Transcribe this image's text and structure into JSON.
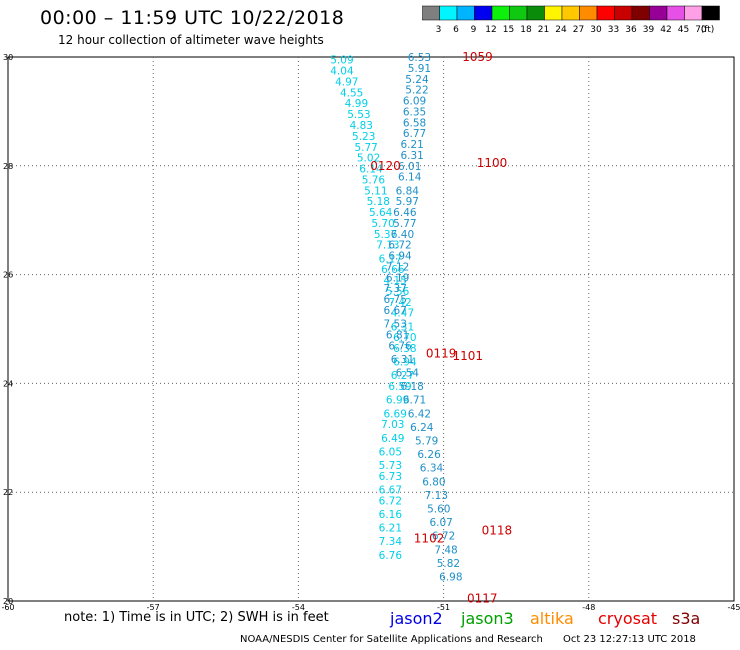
{
  "header": {
    "title": "00:00 – 11:59 UTC 10/22/2018",
    "subtitle": "12 hour collection of altimeter wave heights"
  },
  "color_scale": {
    "unit": "(ft)",
    "bins": [
      {
        "label": "3",
        "color": "#7f7f7f"
      },
      {
        "label": "6",
        "color": "#00f5ff"
      },
      {
        "label": "9",
        "color": "#00b4ff"
      },
      {
        "label": "12",
        "color": "#0000f0"
      },
      {
        "label": "15",
        "color": "#0cf00c"
      },
      {
        "label": "18",
        "color": "#10c810"
      },
      {
        "label": "21",
        "color": "#0a8c0a"
      },
      {
        "label": "24",
        "color": "#fff500"
      },
      {
        "label": "27",
        "color": "#ffc800"
      },
      {
        "label": "30",
        "color": "#ff8c00"
      },
      {
        "label": "33",
        "color": "#ff0000"
      },
      {
        "label": "36",
        "color": "#c80000"
      },
      {
        "label": "39",
        "color": "#800000"
      },
      {
        "label": "42",
        "color": "#960096"
      },
      {
        "label": "45",
        "color": "#e650e6"
      },
      {
        "label": "70",
        "color": "#ffa0e6"
      },
      {
        "label": "",
        "color": "#000000"
      }
    ]
  },
  "chart_data": {
    "type": "scatter",
    "xlim": [
      -60,
      -45
    ],
    "ylim": [
      20,
      30
    ],
    "x_ticks": [
      "-60",
      "-57",
      "-54",
      "-51",
      "-48",
      "-45"
    ],
    "y_ticks": [
      "20",
      "22",
      "24",
      "26",
      "28",
      "30"
    ],
    "grid": true,
    "series": [
      {
        "name": "pass_left",
        "color": "#00cfe8",
        "points": [
          {
            "x": -53.1,
            "y": 29.95,
            "label": "5.09"
          },
          {
            "x": -53.1,
            "y": 29.75,
            "label": "4.04"
          },
          {
            "x": -53.0,
            "y": 29.55,
            "label": "4.97"
          },
          {
            "x": -52.9,
            "y": 29.35,
            "label": "4.55"
          },
          {
            "x": -52.8,
            "y": 29.15,
            "label": "4.99"
          },
          {
            "x": -52.75,
            "y": 28.95,
            "label": "5.53"
          },
          {
            "x": -52.7,
            "y": 28.75,
            "label": "4.83"
          },
          {
            "x": -52.65,
            "y": 28.55,
            "label": "5.23"
          },
          {
            "x": -52.6,
            "y": 28.35,
            "label": "5.77"
          },
          {
            "x": -52.55,
            "y": 28.15,
            "label": "5.02"
          },
          {
            "x": -52.5,
            "y": 27.95,
            "label": "6.14"
          },
          {
            "x": -52.45,
            "y": 27.75,
            "label": "5.76"
          },
          {
            "x": -52.4,
            "y": 27.55,
            "label": "5.11"
          },
          {
            "x": -52.35,
            "y": 27.35,
            "label": "5.18"
          },
          {
            "x": -52.3,
            "y": 27.15,
            "label": "5.64"
          },
          {
            "x": -52.25,
            "y": 26.95,
            "label": "5.70"
          },
          {
            "x": -52.2,
            "y": 26.75,
            "label": "5.37"
          },
          {
            "x": -52.15,
            "y": 26.55,
            "label": "7.13"
          },
          {
            "x": -52.1,
            "y": 26.3,
            "label": "6.17"
          },
          {
            "x": -52.05,
            "y": 26.1,
            "label": "6.66"
          },
          {
            "x": -52.0,
            "y": 25.9,
            "label": "4.15"
          },
          {
            "x": -51.95,
            "y": 25.7,
            "label": "5.56"
          },
          {
            "x": -51.9,
            "y": 25.5,
            "label": "7.42"
          },
          {
            "x": -51.85,
            "y": 25.3,
            "label": "4.47"
          },
          {
            "x": -51.85,
            "y": 25.05,
            "label": "6.31"
          },
          {
            "x": -51.8,
            "y": 24.85,
            "label": "6.70"
          },
          {
            "x": -51.8,
            "y": 24.65,
            "label": "6.38"
          },
          {
            "x": -51.8,
            "y": 24.4,
            "label": "6.94"
          },
          {
            "x": -51.85,
            "y": 24.15,
            "label": "6.27"
          },
          {
            "x": -51.9,
            "y": 23.95,
            "label": "6.59"
          },
          {
            "x": -51.95,
            "y": 23.7,
            "label": "6.99"
          },
          {
            "x": -52.0,
            "y": 23.45,
            "label": "6.69"
          },
          {
            "x": -52.05,
            "y": 23.25,
            "label": "7.03"
          },
          {
            "x": -52.05,
            "y": 23.0,
            "label": "6.49"
          },
          {
            "x": -52.1,
            "y": 22.75,
            "label": "6.05"
          },
          {
            "x": -52.1,
            "y": 22.5,
            "label": "5.73"
          },
          {
            "x": -52.1,
            "y": 22.3,
            "label": "6.73"
          },
          {
            "x": -52.1,
            "y": 22.05,
            "label": "6.67"
          },
          {
            "x": -52.1,
            "y": 21.85,
            "label": "6.72"
          },
          {
            "x": -52.1,
            "y": 21.6,
            "label": "6.16"
          },
          {
            "x": -52.1,
            "y": 21.35,
            "label": "6.21"
          },
          {
            "x": -52.1,
            "y": 21.1,
            "label": "7.34"
          },
          {
            "x": -52.1,
            "y": 20.85,
            "label": "6.76"
          }
        ]
      },
      {
        "name": "pass_right",
        "color": "#1e90c8",
        "points": [
          {
            "x": -51.5,
            "y": 30.0,
            "label": "6.53"
          },
          {
            "x": -51.5,
            "y": 29.8,
            "label": "5.91"
          },
          {
            "x": -51.55,
            "y": 29.6,
            "label": "5.24"
          },
          {
            "x": -51.55,
            "y": 29.4,
            "label": "5.22"
          },
          {
            "x": -51.6,
            "y": 29.2,
            "label": "6.09"
          },
          {
            "x": -51.6,
            "y": 29.0,
            "label": "6.35"
          },
          {
            "x": -51.6,
            "y": 28.8,
            "label": "6.58"
          },
          {
            "x": -51.6,
            "y": 28.6,
            "label": "6.77"
          },
          {
            "x": -51.65,
            "y": 28.4,
            "label": "6.21"
          },
          {
            "x": -51.65,
            "y": 28.2,
            "label": "6.31"
          },
          {
            "x": -51.7,
            "y": 28.0,
            "label": "6.01"
          },
          {
            "x": -51.7,
            "y": 27.8,
            "label": "6.14"
          },
          {
            "x": -51.75,
            "y": 27.55,
            "label": "6.84"
          },
          {
            "x": -51.75,
            "y": 27.35,
            "label": "5.97"
          },
          {
            "x": -51.8,
            "y": 27.15,
            "label": "6.46"
          },
          {
            "x": -51.8,
            "y": 26.95,
            "label": "5.77"
          },
          {
            "x": -51.85,
            "y": 26.75,
            "label": "6.40"
          },
          {
            "x": -51.9,
            "y": 26.55,
            "label": "6.72"
          },
          {
            "x": -51.9,
            "y": 26.35,
            "label": "6.94"
          },
          {
            "x": -51.95,
            "y": 26.15,
            "label": "7.12"
          },
          {
            "x": -51.95,
            "y": 25.95,
            "label": "6.19"
          },
          {
            "x": -52.0,
            "y": 25.75,
            "label": "7.37"
          },
          {
            "x": -52.0,
            "y": 25.55,
            "label": "6.75"
          },
          {
            "x": -52.0,
            "y": 25.35,
            "label": "6.67"
          },
          {
            "x": -52.0,
            "y": 25.1,
            "label": "7.53"
          },
          {
            "x": -51.95,
            "y": 24.9,
            "label": "6.81"
          },
          {
            "x": -51.9,
            "y": 24.7,
            "label": "6.76"
          },
          {
            "x": -51.85,
            "y": 24.45,
            "label": "6.31"
          },
          {
            "x": -51.75,
            "y": 24.2,
            "label": "6.54"
          },
          {
            "x": -51.65,
            "y": 23.95,
            "label": "6.18"
          },
          {
            "x": -51.6,
            "y": 23.7,
            "label": "6.71"
          },
          {
            "x": -51.5,
            "y": 23.45,
            "label": "6.42"
          },
          {
            "x": -51.45,
            "y": 23.2,
            "label": "6.24"
          },
          {
            "x": -51.35,
            "y": 22.95,
            "label": "5.79"
          },
          {
            "x": -51.3,
            "y": 22.7,
            "label": "6.26"
          },
          {
            "x": -51.25,
            "y": 22.45,
            "label": "6.34"
          },
          {
            "x": -51.2,
            "y": 22.2,
            "label": "6.80"
          },
          {
            "x": -51.15,
            "y": 21.95,
            "label": "7.13"
          },
          {
            "x": -51.1,
            "y": 21.7,
            "label": "5.60"
          },
          {
            "x": -51.05,
            "y": 21.45,
            "label": "6.07"
          },
          {
            "x": -51.0,
            "y": 21.2,
            "label": "6.72"
          },
          {
            "x": -50.95,
            "y": 20.95,
            "label": "7.48"
          },
          {
            "x": -50.9,
            "y": 20.7,
            "label": "5.82"
          },
          {
            "x": -50.85,
            "y": 20.45,
            "label": "6.98"
          }
        ]
      },
      {
        "name": "pass_times",
        "color": "#cc0000",
        "points": [
          {
            "x": -50.3,
            "y": 30.0,
            "label": "1059"
          },
          {
            "x": -50.0,
            "y": 28.05,
            "label": "1100"
          },
          {
            "x": -52.2,
            "y": 28.0,
            "label": "0120"
          },
          {
            "x": -50.5,
            "y": 24.5,
            "label": "1101"
          },
          {
            "x": -51.05,
            "y": 24.55,
            "label": "0119"
          },
          {
            "x": -49.9,
            "y": 21.3,
            "label": "0118"
          },
          {
            "x": -51.3,
            "y": 21.15,
            "label": "1102"
          },
          {
            "x": -50.2,
            "y": 20.05,
            "label": "0117"
          }
        ]
      }
    ]
  },
  "legend": {
    "note": "note: 1) Time is in UTC; 2) SWH is in feet",
    "satellites": [
      {
        "label": "jason2",
        "color": "#0000e6"
      },
      {
        "label": "jason3",
        "color": "#00a000"
      },
      {
        "label": "altika",
        "color": "#ff8c00"
      },
      {
        "label": "cryosat",
        "color": "#e60000"
      },
      {
        "label": "s3a",
        "color": "#800000"
      }
    ]
  },
  "footer": {
    "credit": "NOAA/NESDIS Center for Satellite Applications and Research",
    "timestamp": "Oct 23 12:27:13 UTC 2018"
  }
}
